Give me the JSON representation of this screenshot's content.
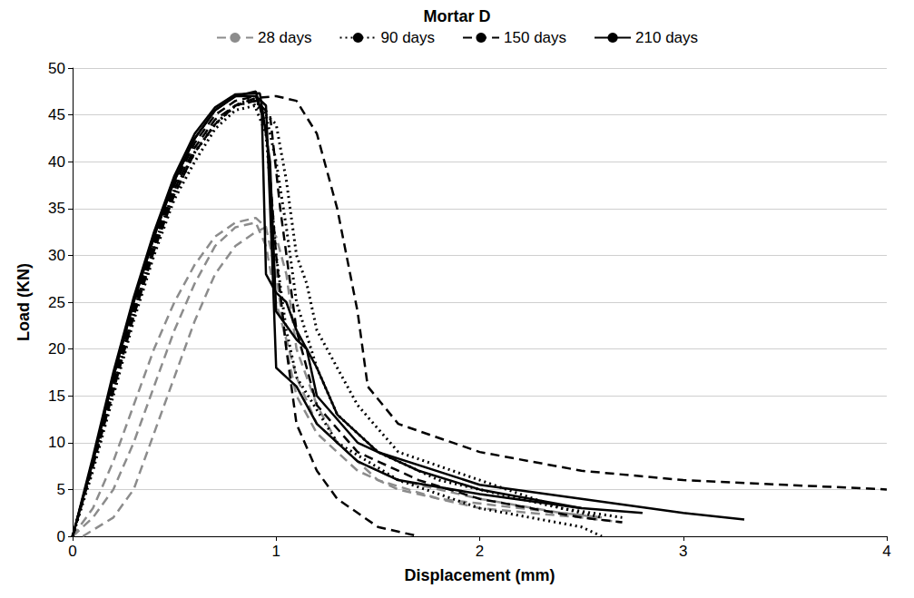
{
  "chart_data": {
    "type": "line",
    "title": "Mortar D",
    "x_label": "Displacement (mm)",
    "y_label": "Load (KN)",
    "xlim": [
      0,
      4
    ],
    "xticks": [
      0,
      1,
      2,
      3,
      4
    ],
    "ylim": [
      0,
      50
    ],
    "yticks": [
      0,
      5,
      10,
      15,
      20,
      25,
      30,
      35,
      40,
      45,
      50
    ],
    "grid": true,
    "legend": "top",
    "series": [
      {
        "name": "28 days",
        "color": "#8c8c8c",
        "line_style": "dashed",
        "x": [
          0,
          0.1,
          0.2,
          0.3,
          0.4,
          0.5,
          0.6,
          0.7,
          0.8,
          0.9,
          0.95,
          1.0,
          1.05,
          1.1,
          1.2,
          1.4,
          1.6,
          2.0,
          2.5,
          2.7
        ],
        "values": [
          0,
          3,
          8,
          14,
          20,
          25,
          29,
          32,
          33.5,
          34,
          33,
          28,
          20,
          15,
          11,
          7,
          5,
          3,
          2,
          1.5
        ]
      },
      {
        "name": "28 days",
        "color": "#8c8c8c",
        "line_style": "dashed",
        "x": [
          0,
          0.1,
          0.2,
          0.3,
          0.4,
          0.5,
          0.6,
          0.7,
          0.8,
          0.9,
          0.95,
          1.0,
          1.1,
          1.2,
          1.4,
          1.6,
          2.0,
          2.4,
          2.6
        ],
        "values": [
          0,
          2,
          5,
          10,
          16,
          22,
          27,
          31,
          33,
          33.5,
          31,
          25,
          17,
          12,
          8,
          6,
          4,
          2.5,
          2
        ]
      },
      {
        "name": "28 days",
        "color": "#8c8c8c",
        "line_style": "dashed",
        "x": [
          0.05,
          0.2,
          0.3,
          0.4,
          0.5,
          0.6,
          0.7,
          0.8,
          0.9,
          0.95,
          1.0,
          1.05,
          1.1,
          1.2,
          1.3,
          1.5,
          1.8,
          2.2,
          2.6
        ],
        "values": [
          0,
          2,
          5,
          11,
          17,
          23,
          28,
          31,
          32.5,
          33,
          32,
          28,
          20,
          14,
          10,
          6,
          4,
          3,
          2
        ]
      },
      {
        "name": "90 days",
        "color": "#000000",
        "line_style": "dotted",
        "x": [
          0,
          0.1,
          0.2,
          0.3,
          0.4,
          0.5,
          0.6,
          0.7,
          0.8,
          0.9,
          0.95,
          1.0,
          1.05,
          1.1,
          1.2,
          1.3,
          1.5,
          1.8,
          2.2,
          2.6
        ],
        "values": [
          0,
          8,
          16,
          24,
          31,
          37,
          41,
          44,
          46,
          46.5,
          45,
          40,
          33,
          25,
          18,
          13,
          9,
          6,
          4,
          2
        ]
      },
      {
        "name": "90 days",
        "color": "#000000",
        "line_style": "dotted",
        "x": [
          0,
          0.1,
          0.2,
          0.3,
          0.4,
          0.5,
          0.6,
          0.7,
          0.8,
          0.9,
          1.0,
          1.05,
          1.1,
          1.15,
          1.2,
          1.4,
          1.6,
          2.0,
          2.4,
          2.7
        ],
        "values": [
          0,
          7,
          15,
          23,
          30,
          36,
          40,
          43.5,
          45.5,
          46,
          44,
          38,
          30,
          27,
          22,
          14,
          9,
          6,
          3,
          2
        ]
      },
      {
        "name": "90 days",
        "color": "#000000",
        "line_style": "dotted",
        "x": [
          0,
          0.1,
          0.2,
          0.3,
          0.4,
          0.5,
          0.6,
          0.7,
          0.8,
          0.88,
          0.95,
          1.0,
          1.05,
          1.1,
          1.3,
          1.6,
          2.0,
          2.5,
          2.6
        ],
        "values": [
          0,
          7.5,
          15.5,
          23.5,
          30.5,
          36.5,
          41,
          44,
          46,
          46.8,
          43,
          30,
          22,
          17,
          10,
          6,
          3,
          1,
          0
        ]
      },
      {
        "name": "150 days",
        "color": "#000000",
        "line_style": "dashed",
        "x": [
          0,
          0.1,
          0.2,
          0.3,
          0.4,
          0.5,
          0.6,
          0.7,
          0.8,
          0.9,
          1.0,
          1.1,
          1.2,
          1.3,
          1.4,
          1.45,
          1.6,
          2.0,
          2.5,
          3.0,
          3.5,
          4.0
        ],
        "values": [
          0,
          8,
          16,
          24,
          31,
          37,
          41.5,
          44.5,
          46,
          46.8,
          47,
          46.5,
          43,
          35,
          24,
          16,
          12,
          9,
          7,
          6,
          5.5,
          5
        ]
      },
      {
        "name": "150 days",
        "color": "#000000",
        "line_style": "dashed",
        "x": [
          0,
          0.1,
          0.2,
          0.3,
          0.4,
          0.5,
          0.6,
          0.7,
          0.8,
          0.9,
          0.95,
          1.0,
          1.05,
          1.1,
          1.2,
          1.3,
          1.5,
          1.7
        ],
        "values": [
          0,
          8,
          16.5,
          24.5,
          31.5,
          37.5,
          42,
          45,
          46.5,
          47,
          44,
          30,
          20,
          12,
          7,
          4,
          1,
          0
        ]
      },
      {
        "name": "150 days",
        "color": "#000000",
        "line_style": "dashed",
        "x": [
          0,
          0.1,
          0.2,
          0.3,
          0.4,
          0.5,
          0.6,
          0.7,
          0.8,
          0.9,
          0.97,
          1.02,
          1.1,
          1.2,
          1.4,
          1.7,
          2.0,
          2.5,
          2.7
        ],
        "values": [
          0,
          7.5,
          15.5,
          23.5,
          30.5,
          36.5,
          41,
          44,
          46,
          46.5,
          45,
          35,
          22,
          14,
          9,
          6,
          4,
          2,
          1.5
        ]
      },
      {
        "name": "210 days",
        "color": "#000000",
        "line_style": "solid",
        "x": [
          0,
          0.1,
          0.2,
          0.3,
          0.4,
          0.5,
          0.6,
          0.7,
          0.8,
          0.9,
          0.93,
          0.95,
          1.0,
          1.05,
          1.1,
          1.2,
          1.3,
          1.5,
          2.0,
          2.5,
          3.0,
          3.3
        ],
        "values": [
          0,
          8,
          17,
          25,
          32,
          38,
          42.5,
          45.5,
          47,
          47.5,
          45,
          28,
          26,
          25,
          22,
          18,
          13,
          9,
          5.5,
          4,
          2.5,
          1.8
        ]
      },
      {
        "name": "210 days",
        "color": "#000000",
        "line_style": "solid",
        "x": [
          0,
          0.1,
          0.2,
          0.3,
          0.4,
          0.5,
          0.6,
          0.7,
          0.8,
          0.92,
          0.97,
          1.0,
          1.1,
          1.15,
          1.2,
          1.4,
          1.7,
          2.0,
          2.5,
          2.8
        ],
        "values": [
          0,
          8.5,
          17.5,
          25.5,
          32.5,
          38.5,
          43,
          45.8,
          47.2,
          47.3,
          40,
          24,
          21,
          20,
          15,
          10,
          7,
          5,
          3,
          2.5
        ]
      },
      {
        "name": "210 days",
        "color": "#000000",
        "line_style": "solid",
        "x": [
          0,
          0.1,
          0.2,
          0.3,
          0.4,
          0.5,
          0.6,
          0.7,
          0.8,
          0.9,
          0.95,
          0.98,
          1.0,
          1.05,
          1.1,
          1.2,
          1.4,
          1.6,
          2.0,
          2.5
        ],
        "values": [
          0,
          8,
          17,
          25,
          32,
          38,
          42.5,
          45.5,
          47,
          47,
          46,
          30,
          18,
          17,
          16,
          12,
          8,
          6,
          4.5,
          3
        ]
      }
    ]
  }
}
